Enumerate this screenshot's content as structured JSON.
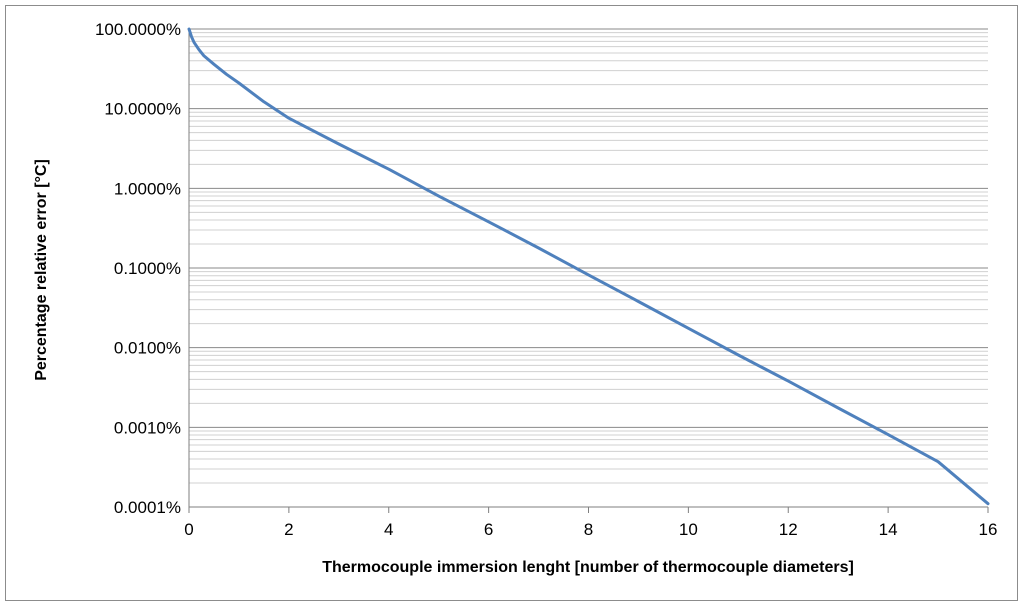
{
  "chart_data": {
    "type": "line",
    "title": "",
    "xlabel": "Thermocouple immersion lenght [number of thermocouple diameters]",
    "ylabel": "Percentage relative error [°C]",
    "x_scale": "linear",
    "y_scale": "log",
    "xlim": [
      0,
      16
    ],
    "ylim": [
      0.0001,
      100
    ],
    "x_ticks": [
      0,
      2,
      4,
      6,
      8,
      10,
      12,
      14,
      16
    ],
    "x_tick_labels": [
      "0",
      "2",
      "4",
      "6",
      "8",
      "10",
      "12",
      "14",
      "16"
    ],
    "y_ticks": [
      0.0001,
      0.001,
      0.01,
      0.1,
      1,
      10,
      100
    ],
    "y_tick_labels": [
      "0.0001%",
      "0.0010%",
      "0.0100%",
      "0.1000%",
      "1.0000%",
      "10.0000%",
      "100.0000%"
    ],
    "grid": "horizontal major and minor",
    "legend": "none",
    "series": [
      {
        "color": "#4f81bd",
        "x": [
          0,
          0.05,
          0.1,
          0.2,
          0.3,
          0.5,
          0.75,
          1,
          1.5,
          2,
          3,
          4,
          5,
          6,
          7,
          8,
          9,
          10,
          11,
          12,
          13,
          14,
          15,
          16
        ],
        "y": [
          100,
          80,
          68,
          55,
          46,
          36,
          27,
          21,
          12.2,
          7.6,
          3.6,
          1.74,
          0.8,
          0.38,
          0.178,
          0.082,
          0.038,
          0.0175,
          0.0081,
          0.0038,
          0.00175,
          0.00081,
          0.00037,
          0.00011
        ]
      }
    ]
  }
}
